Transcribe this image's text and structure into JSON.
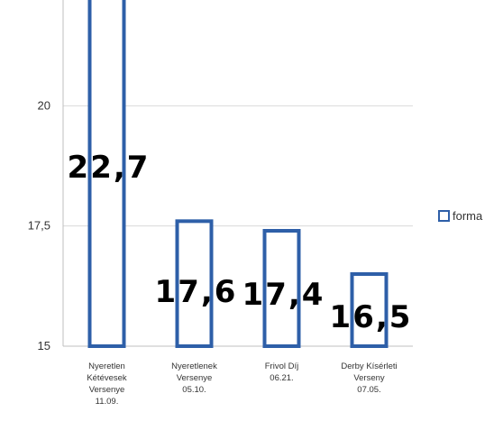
{
  "chart_data": {
    "type": "bar",
    "categories": [
      [
        "Nyeretlen",
        "Kétévesek",
        "Versenye",
        "11.09."
      ],
      [
        "Nyeretlenek",
        "Versenye",
        "05.10."
      ],
      [
        "Frivol Díj",
        "06.21."
      ],
      [
        "Derby Kísérleti",
        "Verseny",
        "07.05."
      ]
    ],
    "series": [
      {
        "name": "forma",
        "values": [
          22.7,
          17.6,
          17.4,
          16.5
        ]
      }
    ],
    "data_labels": [
      "22,7",
      "17,6",
      "17,4",
      "16,5"
    ],
    "y_ticks": [
      "15",
      "17,5",
      "20"
    ],
    "ylim": [
      15,
      22.2
    ],
    "grid": true,
    "legend_position": "right",
    "bar_style": "outline",
    "bar_color": "#2e5fa8",
    "grid_color": "#d9d9d9",
    "axis_color": "#bfbfbf"
  }
}
